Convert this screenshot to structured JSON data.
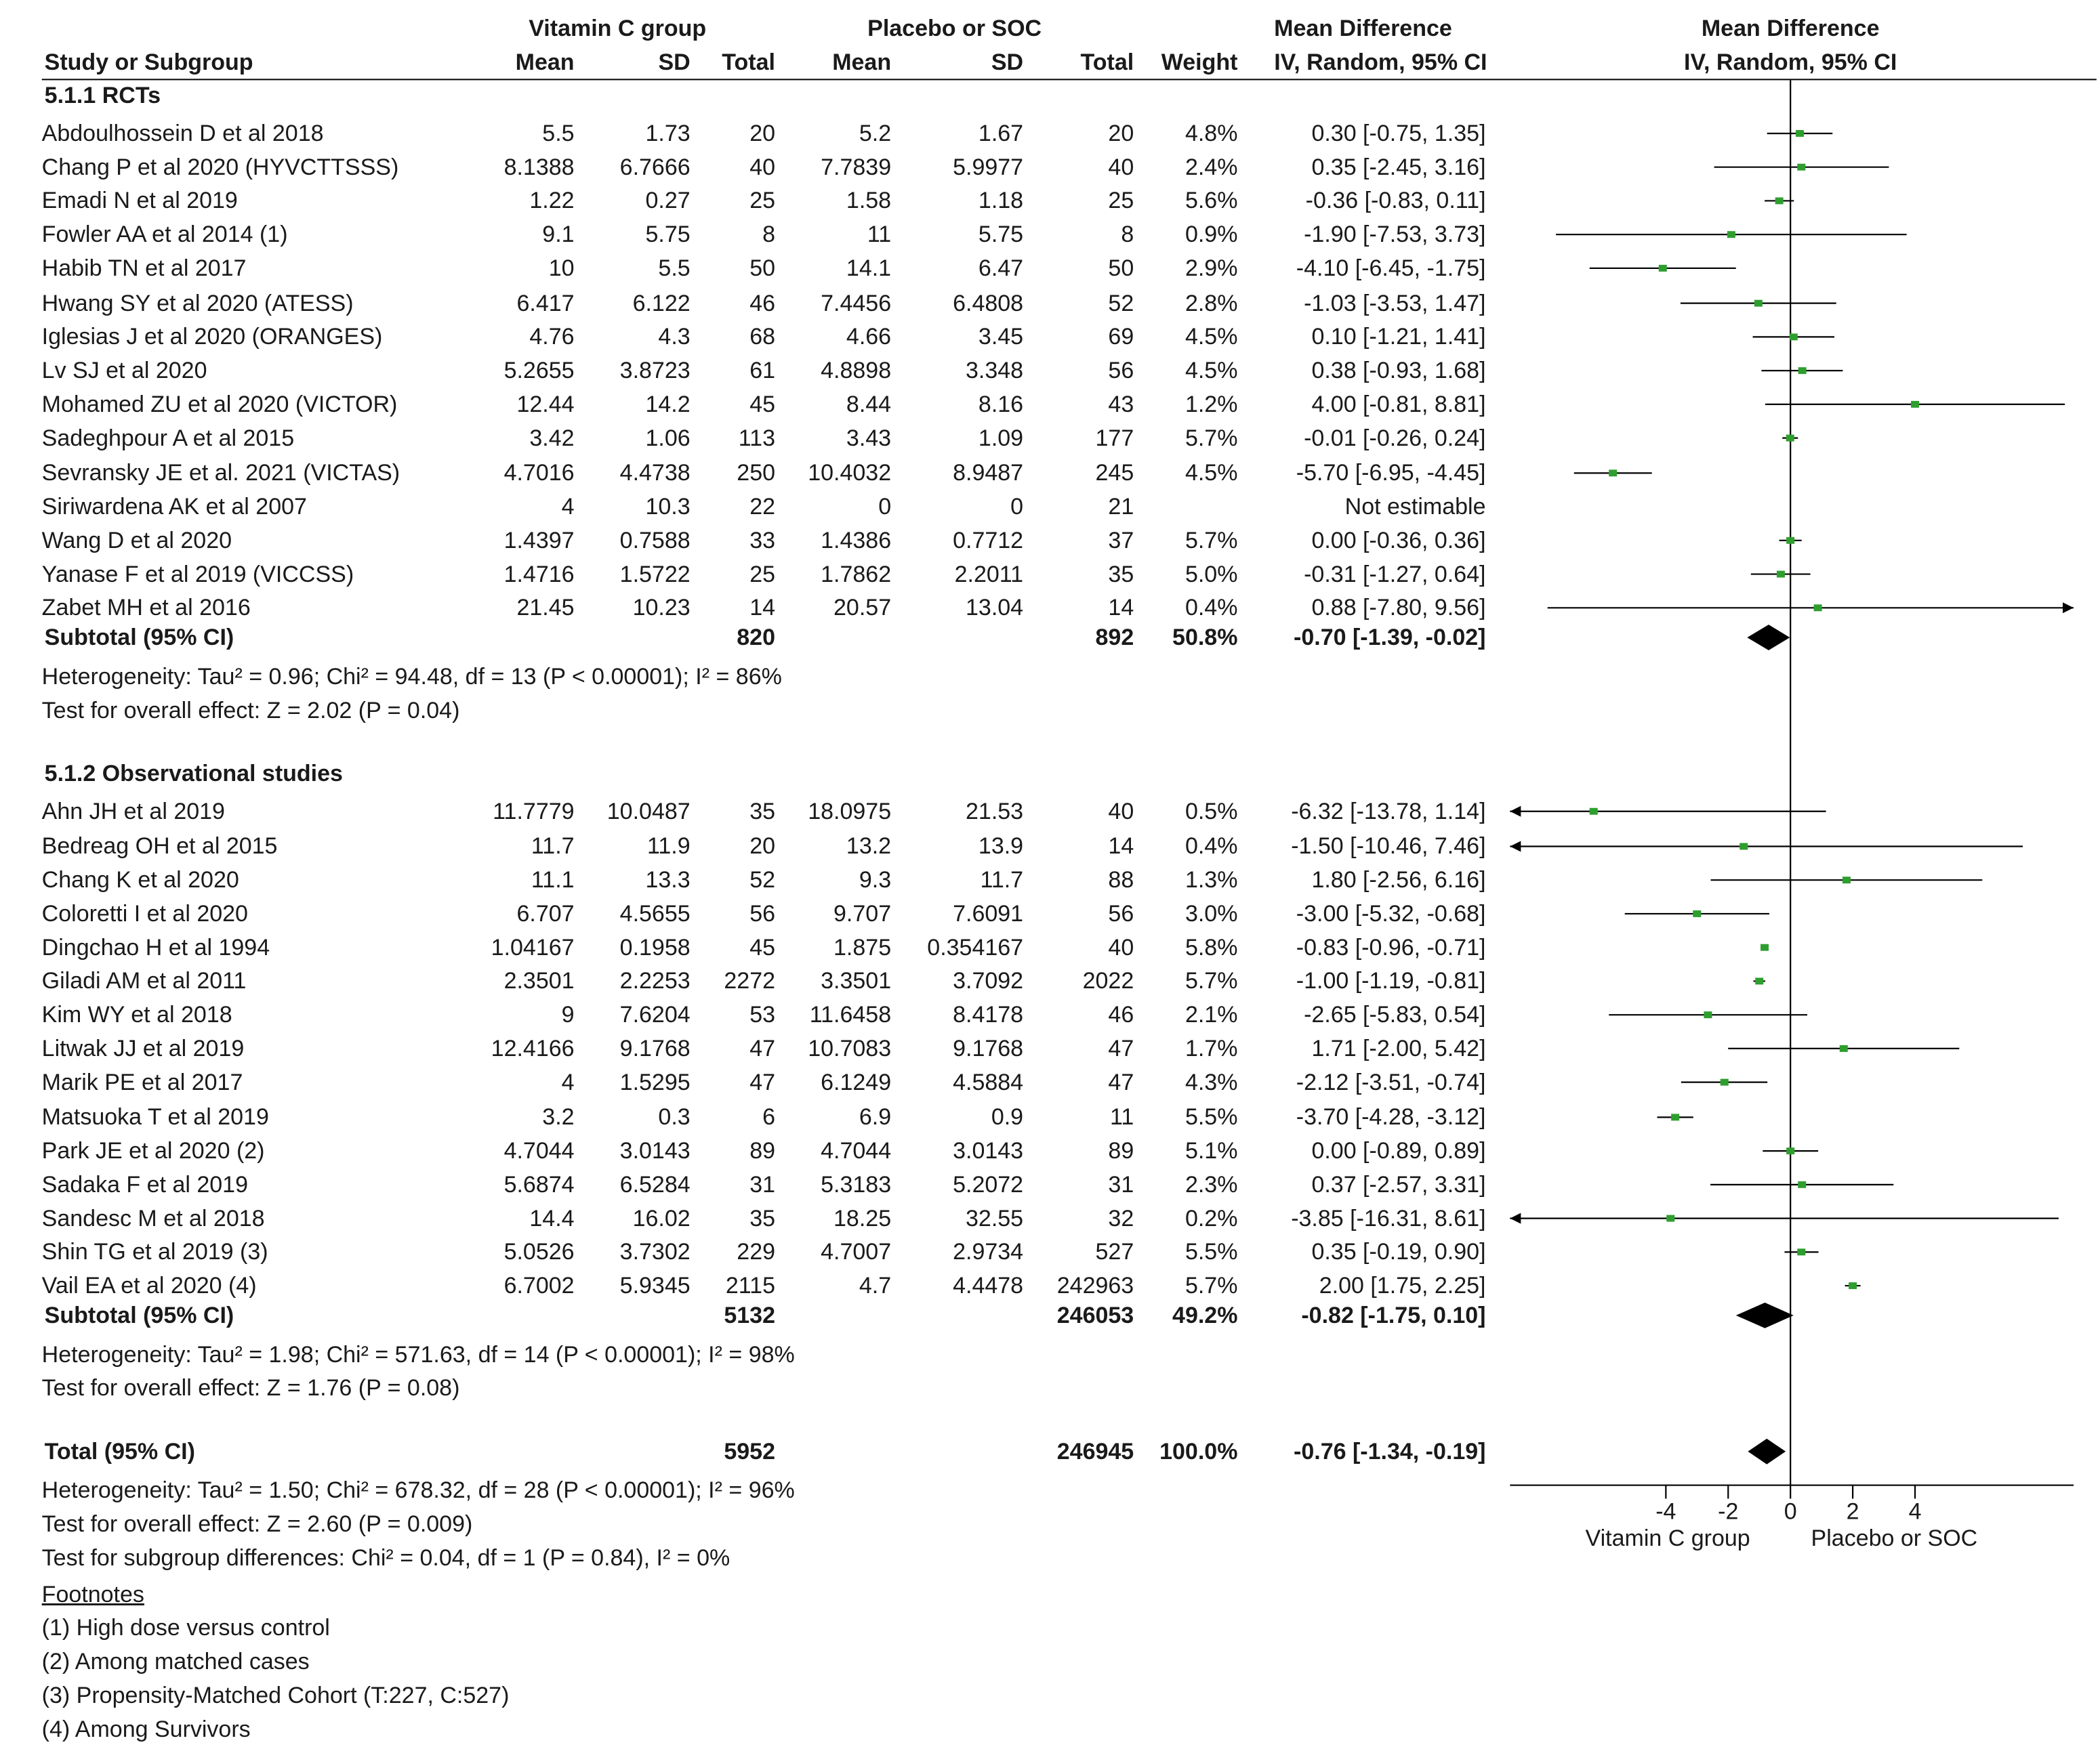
{
  "headers": {
    "group1": "Vitamin C group",
    "group2": "Placebo or SOC",
    "md_title": "Mean Difference",
    "plot_title": "Mean Difference",
    "study": "Study or Subgroup",
    "mean1": "Mean",
    "sd1": "SD",
    "total1": "Total",
    "mean2": "Mean",
    "sd2": "SD",
    "total2": "Total",
    "weight": "Weight",
    "md_sub": "IV, Random, 95% CI",
    "plot_sub": "IV, Random, 95% CI"
  },
  "subgroups": [
    {
      "title": "5.1.1 RCTs",
      "studies": [
        {
          "name": "Abdoulhossein D et al 2018",
          "m1": "5.5",
          "sd1": "1.73",
          "n1": "20",
          "m2": "5.2",
          "sd2": "1.67",
          "n2": "20",
          "w": "4.8%",
          "ci": "0.30 [-0.75, 1.35]"
        },
        {
          "name": "Chang P et al 2020 (HYVCTTSSS)",
          "m1": "8.1388",
          "sd1": "6.7666",
          "n1": "40",
          "m2": "7.7839",
          "sd2": "5.9977",
          "n2": "40",
          "w": "2.4%",
          "ci": "0.35 [-2.45, 3.16]"
        },
        {
          "name": "Emadi N et al 2019",
          "m1": "1.22",
          "sd1": "0.27",
          "n1": "25",
          "m2": "1.58",
          "sd2": "1.18",
          "n2": "25",
          "w": "5.6%",
          "ci": "-0.36 [-0.83, 0.11]"
        },
        {
          "name": "Fowler AA et al 2014 (1)",
          "m1": "9.1",
          "sd1": "5.75",
          "n1": "8",
          "m2": "11",
          "sd2": "5.75",
          "n2": "8",
          "w": "0.9%",
          "ci": "-1.90 [-7.53, 3.73]"
        },
        {
          "name": "Habib TN et al 2017",
          "m1": "10",
          "sd1": "5.5",
          "n1": "50",
          "m2": "14.1",
          "sd2": "6.47",
          "n2": "50",
          "w": "2.9%",
          "ci": "-4.10 [-6.45, -1.75]"
        },
        {
          "name": "Hwang SY et al 2020 (ATESS)",
          "m1": "6.417",
          "sd1": "6.122",
          "n1": "46",
          "m2": "7.4456",
          "sd2": "6.4808",
          "n2": "52",
          "w": "2.8%",
          "ci": "-1.03 [-3.53, 1.47]"
        },
        {
          "name": "Iglesias J et al 2020 (ORANGES)",
          "m1": "4.76",
          "sd1": "4.3",
          "n1": "68",
          "m2": "4.66",
          "sd2": "3.45",
          "n2": "69",
          "w": "4.5%",
          "ci": "0.10 [-1.21, 1.41]"
        },
        {
          "name": "Lv SJ et al 2020",
          "m1": "5.2655",
          "sd1": "3.8723",
          "n1": "61",
          "m2": "4.8898",
          "sd2": "3.348",
          "n2": "56",
          "w": "4.5%",
          "ci": "0.38 [-0.93, 1.68]"
        },
        {
          "name": "Mohamed ZU et al 2020 (VICTOR)",
          "m1": "12.44",
          "sd1": "14.2",
          "n1": "45",
          "m2": "8.44",
          "sd2": "8.16",
          "n2": "43",
          "w": "1.2%",
          "ci": "4.00 [-0.81, 8.81]"
        },
        {
          "name": "Sadeghpour A et al 2015",
          "m1": "3.42",
          "sd1": "1.06",
          "n1": "113",
          "m2": "3.43",
          "sd2": "1.09",
          "n2": "177",
          "w": "5.7%",
          "ci": "-0.01 [-0.26, 0.24]"
        },
        {
          "name": "Sevransky JE et al. 2021 (VICTAS)",
          "m1": "4.7016",
          "sd1": "4.4738",
          "n1": "250",
          "m2": "10.4032",
          "sd2": "8.9487",
          "n2": "245",
          "w": "4.5%",
          "ci": "-5.70 [-6.95, -4.45]"
        },
        {
          "name": "Siriwardena AK et al 2007",
          "m1": "4",
          "sd1": "10.3",
          "n1": "22",
          "m2": "0",
          "sd2": "0",
          "n2": "21",
          "w": "",
          "ci": "Not estimable"
        },
        {
          "name": "Wang D et al 2020",
          "m1": "1.4397",
          "sd1": "0.7588",
          "n1": "33",
          "m2": "1.4386",
          "sd2": "0.7712",
          "n2": "37",
          "w": "5.7%",
          "ci": "0.00 [-0.36, 0.36]"
        },
        {
          "name": "Yanase F et al 2019 (VICCSS)",
          "m1": "1.4716",
          "sd1": "1.5722",
          "n1": "25",
          "m2": "1.7862",
          "sd2": "2.2011",
          "n2": "35",
          "w": "5.0%",
          "ci": "-0.31 [-1.27, 0.64]"
        },
        {
          "name": "Zabet MH et al 2016",
          "m1": "21.45",
          "sd1": "10.23",
          "n1": "14",
          "m2": "20.57",
          "sd2": "13.04",
          "n2": "14",
          "w": "0.4%",
          "ci": "0.88 [-7.80, 9.56]"
        }
      ],
      "subtotal": {
        "label": "Subtotal (95% CI)",
        "n1": "820",
        "n2": "892",
        "w": "50.8%",
        "ci": "-0.70 [-1.39, -0.02]"
      },
      "heterogeneity": "Heterogeneity: Tau² = 0.96; Chi² = 94.48, df = 13 (P < 0.00001); I² = 86%",
      "overall": "Test for overall effect: Z = 2.02 (P = 0.04)"
    },
    {
      "title": "5.1.2 Observational studies",
      "studies": [
        {
          "name": "Ahn JH et al 2019",
          "m1": "11.7779",
          "sd1": "10.0487",
          "n1": "35",
          "m2": "18.0975",
          "sd2": "21.53",
          "n2": "40",
          "w": "0.5%",
          "ci": "-6.32 [-13.78, 1.14]"
        },
        {
          "name": "Bedreag OH et al 2015",
          "m1": "11.7",
          "sd1": "11.9",
          "n1": "20",
          "m2": "13.2",
          "sd2": "13.9",
          "n2": "14",
          "w": "0.4%",
          "ci": "-1.50 [-10.46, 7.46]"
        },
        {
          "name": "Chang K et al 2020",
          "m1": "11.1",
          "sd1": "13.3",
          "n1": "52",
          "m2": "9.3",
          "sd2": "11.7",
          "n2": "88",
          "w": "1.3%",
          "ci": "1.80 [-2.56, 6.16]"
        },
        {
          "name": "Coloretti I et al 2020",
          "m1": "6.707",
          "sd1": "4.5655",
          "n1": "56",
          "m2": "9.707",
          "sd2": "7.6091",
          "n2": "56",
          "w": "3.0%",
          "ci": "-3.00 [-5.32, -0.68]"
        },
        {
          "name": "Dingchao H et al 1994",
          "m1": "1.04167",
          "sd1": "0.1958",
          "n1": "45",
          "m2": "1.875",
          "sd2": "0.354167",
          "n2": "40",
          "w": "5.8%",
          "ci": "-0.83 [-0.96, -0.71]"
        },
        {
          "name": "Giladi AM et al 2011",
          "m1": "2.3501",
          "sd1": "2.2253",
          "n1": "2272",
          "m2": "3.3501",
          "sd2": "3.7092",
          "n2": "2022",
          "w": "5.7%",
          "ci": "-1.00 [-1.19, -0.81]"
        },
        {
          "name": "Kim WY et al 2018",
          "m1": "9",
          "sd1": "7.6204",
          "n1": "53",
          "m2": "11.6458",
          "sd2": "8.4178",
          "n2": "46",
          "w": "2.1%",
          "ci": "-2.65 [-5.83, 0.54]"
        },
        {
          "name": "Litwak JJ et al 2019",
          "m1": "12.4166",
          "sd1": "9.1768",
          "n1": "47",
          "m2": "10.7083",
          "sd2": "9.1768",
          "n2": "47",
          "w": "1.7%",
          "ci": "1.71 [-2.00, 5.42]"
        },
        {
          "name": "Marik PE et al 2017",
          "m1": "4",
          "sd1": "1.5295",
          "n1": "47",
          "m2": "6.1249",
          "sd2": "4.5884",
          "n2": "47",
          "w": "4.3%",
          "ci": "-2.12 [-3.51, -0.74]"
        },
        {
          "name": "Matsuoka T et al 2019",
          "m1": "3.2",
          "sd1": "0.3",
          "n1": "6",
          "m2": "6.9",
          "sd2": "0.9",
          "n2": "11",
          "w": "5.5%",
          "ci": "-3.70 [-4.28, -3.12]"
        },
        {
          "name": "Park JE et al 2020 (2)",
          "m1": "4.7044",
          "sd1": "3.0143",
          "n1": "89",
          "m2": "4.7044",
          "sd2": "3.0143",
          "n2": "89",
          "w": "5.1%",
          "ci": "0.00 [-0.89, 0.89]"
        },
        {
          "name": "Sadaka F et al 2019",
          "m1": "5.6874",
          "sd1": "6.5284",
          "n1": "31",
          "m2": "5.3183",
          "sd2": "5.2072",
          "n2": "31",
          "w": "2.3%",
          "ci": "0.37 [-2.57, 3.31]"
        },
        {
          "name": "Sandesc M et al 2018",
          "m1": "14.4",
          "sd1": "16.02",
          "n1": "35",
          "m2": "18.25",
          "sd2": "32.55",
          "n2": "32",
          "w": "0.2%",
          "ci": "-3.85 [-16.31, 8.61]"
        },
        {
          "name": "Shin TG et al 2019 (3)",
          "m1": "5.0526",
          "sd1": "3.7302",
          "n1": "229",
          "m2": "4.7007",
          "sd2": "2.9734",
          "n2": "527",
          "w": "5.5%",
          "ci": "0.35 [-0.19, 0.90]"
        },
        {
          "name": "Vail EA et al 2020 (4)",
          "m1": "6.7002",
          "sd1": "5.9345",
          "n1": "2115",
          "m2": "4.7",
          "sd2": "4.4478",
          "n2": "242963",
          "w": "5.7%",
          "ci": "2.00 [1.75, 2.25]"
        }
      ],
      "subtotal": {
        "label": "Subtotal (95% CI)",
        "n1": "5132",
        "n2": "246053",
        "w": "49.2%",
        "ci": "-0.82 [-1.75, 0.10]"
      },
      "heterogeneity": "Heterogeneity: Tau² = 1.98; Chi² = 571.63, df = 14 (P < 0.00001); I² = 98%",
      "overall": "Test for overall effect: Z = 1.76 (P = 0.08)"
    }
  ],
  "total": {
    "label": "Total (95% CI)",
    "n1": "5952",
    "n2": "246945",
    "w": "100.0%",
    "ci": "-0.76 [-1.34, -0.19]"
  },
  "total_heterogeneity": "Heterogeneity: Tau² = 1.50; Chi² = 678.32, df = 28 (P < 0.00001); I² = 96%",
  "total_overall": "Test for overall effect: Z = 2.60 (P = 0.009)",
  "subgroup_diff": "Test for subgroup differences: Chi² = 0.04, df = 1 (P = 0.84), I² = 0%",
  "footnotes": {
    "title": "Footnotes",
    "items": [
      "(1) High dose versus control",
      "(2) Among matched cases",
      "(3) Propensity-Matched Cohort (T:227, C:527)",
      "(4) Among Survivors"
    ]
  },
  "chart_data": {
    "type": "forest",
    "xlim": [
      -9,
      9
    ],
    "ticks": [
      -4,
      -2,
      0,
      2,
      4
    ],
    "xlabel_left": "Vitamin C group",
    "xlabel_right": "Placebo or SOC",
    "colors": {
      "point": "#2e9e2e",
      "line": "#000000"
    },
    "studies": [
      {
        "name": "Abdoulhossein D et al 2018",
        "est": 0.3,
        "lo": -0.75,
        "hi": 1.35
      },
      {
        "name": "Chang P et al 2020 (HYVCTTSSS)",
        "est": 0.35,
        "lo": -2.45,
        "hi": 3.16
      },
      {
        "name": "Emadi N et al 2019",
        "est": -0.36,
        "lo": -0.83,
        "hi": 0.11
      },
      {
        "name": "Fowler AA et al 2014 (1)",
        "est": -1.9,
        "lo": -7.53,
        "hi": 3.73
      },
      {
        "name": "Habib TN et al 2017",
        "est": -4.1,
        "lo": -6.45,
        "hi": -1.75
      },
      {
        "name": "Hwang SY et al 2020 (ATESS)",
        "est": -1.03,
        "lo": -3.53,
        "hi": 1.47
      },
      {
        "name": "Iglesias J et al 2020 (ORANGES)",
        "est": 0.1,
        "lo": -1.21,
        "hi": 1.41
      },
      {
        "name": "Lv SJ et al 2020",
        "est": 0.38,
        "lo": -0.93,
        "hi": 1.68
      },
      {
        "name": "Mohamed ZU et al 2020 (VICTOR)",
        "est": 4.0,
        "lo": -0.81,
        "hi": 8.81
      },
      {
        "name": "Sadeghpour A et al 2015",
        "est": -0.01,
        "lo": -0.26,
        "hi": 0.24
      },
      {
        "name": "Sevransky JE et al. 2021 (VICTAS)",
        "est": -5.7,
        "lo": -6.95,
        "hi": -4.45
      },
      {
        "name": "Siriwardena AK et al 2007",
        "est": null,
        "lo": null,
        "hi": null
      },
      {
        "name": "Wang D et al 2020",
        "est": 0.0,
        "lo": -0.36,
        "hi": 0.36
      },
      {
        "name": "Yanase F et al 2019 (VICCSS)",
        "est": -0.31,
        "lo": -1.27,
        "hi": 0.64
      },
      {
        "name": "Zabet MH et al 2016",
        "est": 0.88,
        "lo": -7.8,
        "hi": 9.56
      },
      {
        "name": "Subtotal RCTs",
        "est": -0.7,
        "lo": -1.39,
        "hi": -0.02,
        "diamond": true
      },
      {
        "name": "Ahn JH et al 2019",
        "est": -6.32,
        "lo": -13.78,
        "hi": 1.14
      },
      {
        "name": "Bedreag OH et al 2015",
        "est": -1.5,
        "lo": -10.46,
        "hi": 7.46
      },
      {
        "name": "Chang K et al 2020",
        "est": 1.8,
        "lo": -2.56,
        "hi": 6.16
      },
      {
        "name": "Coloretti I et al 2020",
        "est": -3.0,
        "lo": -5.32,
        "hi": -0.68
      },
      {
        "name": "Dingchao H et al 1994",
        "est": -0.83,
        "lo": -0.96,
        "hi": -0.71
      },
      {
        "name": "Giladi AM et al 2011",
        "est": -1.0,
        "lo": -1.19,
        "hi": -0.81
      },
      {
        "name": "Kim WY et al 2018",
        "est": -2.65,
        "lo": -5.83,
        "hi": 0.54
      },
      {
        "name": "Litwak JJ et al 2019",
        "est": 1.71,
        "lo": -2.0,
        "hi": 5.42
      },
      {
        "name": "Marik PE et al 2017",
        "est": -2.12,
        "lo": -3.51,
        "hi": -0.74
      },
      {
        "name": "Matsuoka T et al 2019",
        "est": -3.7,
        "lo": -4.28,
        "hi": -3.12
      },
      {
        "name": "Park JE et al 2020 (2)",
        "est": 0.0,
        "lo": -0.89,
        "hi": 0.89
      },
      {
        "name": "Sadaka F et al 2019",
        "est": 0.37,
        "lo": -2.57,
        "hi": 3.31
      },
      {
        "name": "Sandesc M et al 2018",
        "est": -3.85,
        "lo": -16.31,
        "hi": 8.61
      },
      {
        "name": "Shin TG et al 2019 (3)",
        "est": 0.35,
        "lo": -0.19,
        "hi": 0.9
      },
      {
        "name": "Vail EA et al 2020 (4)",
        "est": 2.0,
        "lo": 1.75,
        "hi": 2.25
      },
      {
        "name": "Subtotal Observational",
        "est": -0.82,
        "lo": -1.75,
        "hi": 0.1,
        "diamond": true
      },
      {
        "name": "Total",
        "est": -0.76,
        "lo": -1.34,
        "hi": -0.19,
        "diamond": true
      }
    ]
  }
}
